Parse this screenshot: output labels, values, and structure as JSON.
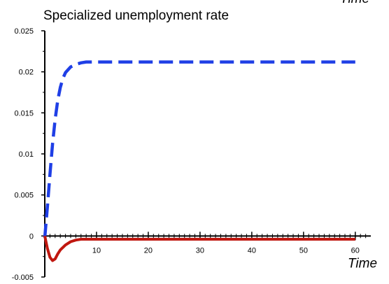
{
  "chart_data": {
    "type": "line",
    "title": "Specialized unemployment rate",
    "corner_label": "Time",
    "xlabel": "Time",
    "ylabel": "",
    "xlim": [
      0,
      63
    ],
    "ylim": [
      -0.005,
      0.025
    ],
    "x_ticks": [
      10,
      20,
      30,
      40,
      50,
      60
    ],
    "y_ticks": [
      -0.005,
      0,
      0.005,
      0.01,
      0.015,
      0.02,
      0.025
    ],
    "y_tick_labels": [
      "-0.005",
      "0",
      "0.005",
      "0.01",
      "0.015",
      "0.02",
      "0.025"
    ],
    "grid": false,
    "series": [
      {
        "color": "#1f3fe6",
        "dash": true,
        "x": [
          0,
          0.5,
          1,
          1.5,
          2,
          2.5,
          3,
          3.5,
          4,
          5,
          6,
          7,
          8,
          10,
          15,
          20,
          30,
          40,
          50,
          60
        ],
        "y": [
          -0.0002,
          0.0035,
          0.0075,
          0.0112,
          0.0142,
          0.0165,
          0.0181,
          0.0192,
          0.0199,
          0.0206,
          0.0209,
          0.0211,
          0.0212,
          0.0212,
          0.0212,
          0.0212,
          0.0212,
          0.0212,
          0.0212,
          0.0212
        ]
      },
      {
        "color": "#c0170f",
        "dash": false,
        "x": [
          0,
          0.5,
          1,
          1.5,
          2,
          2.5,
          3,
          4,
          5,
          6,
          7,
          8,
          10,
          20,
          30,
          40,
          50,
          60
        ],
        "y": [
          0,
          -0.0015,
          -0.0026,
          -0.003,
          -0.0028,
          -0.0022,
          -0.0017,
          -0.0011,
          -0.0007,
          -0.0005,
          -0.0004,
          -0.0004,
          -0.0004,
          -0.0004,
          -0.0004,
          -0.0004,
          -0.0004,
          -0.0004
        ]
      }
    ]
  }
}
